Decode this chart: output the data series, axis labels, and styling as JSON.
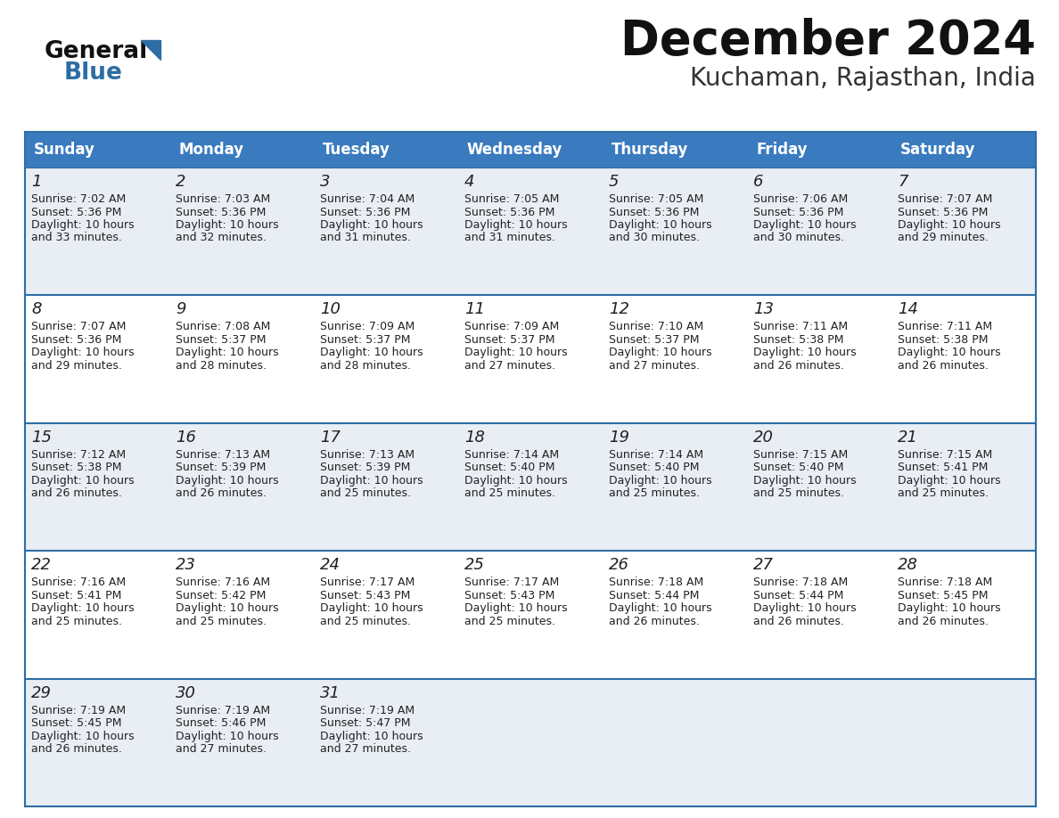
{
  "title": "December 2024",
  "subtitle": "Kuchaman, Rajasthan, India",
  "days_of_week": [
    "Sunday",
    "Monday",
    "Tuesday",
    "Wednesday",
    "Thursday",
    "Friday",
    "Saturday"
  ],
  "header_bg": "#3a7bbf",
  "header_text": "#ffffff",
  "cell_bg_light": "#e8eef4",
  "cell_bg_white": "#ffffff",
  "day_num_color": "#222222",
  "text_color": "#222222",
  "border_color": "#2e6da4",
  "title_color": "#111111",
  "subtitle_color": "#333333",
  "logo_general_color": "#111111",
  "logo_blue_color": "#2e6da4",
  "calendar": [
    [
      {
        "day": 1,
        "sunrise": "7:02 AM",
        "sunset": "5:36 PM",
        "daylight_h": "10 hours",
        "daylight_m": "33 minutes."
      },
      {
        "day": 2,
        "sunrise": "7:03 AM",
        "sunset": "5:36 PM",
        "daylight_h": "10 hours",
        "daylight_m": "32 minutes."
      },
      {
        "day": 3,
        "sunrise": "7:04 AM",
        "sunset": "5:36 PM",
        "daylight_h": "10 hours",
        "daylight_m": "31 minutes."
      },
      {
        "day": 4,
        "sunrise": "7:05 AM",
        "sunset": "5:36 PM",
        "daylight_h": "10 hours",
        "daylight_m": "31 minutes."
      },
      {
        "day": 5,
        "sunrise": "7:05 AM",
        "sunset": "5:36 PM",
        "daylight_h": "10 hours",
        "daylight_m": "30 minutes."
      },
      {
        "day": 6,
        "sunrise": "7:06 AM",
        "sunset": "5:36 PM",
        "daylight_h": "10 hours",
        "daylight_m": "30 minutes."
      },
      {
        "day": 7,
        "sunrise": "7:07 AM",
        "sunset": "5:36 PM",
        "daylight_h": "10 hours",
        "daylight_m": "29 minutes."
      }
    ],
    [
      {
        "day": 8,
        "sunrise": "7:07 AM",
        "sunset": "5:36 PM",
        "daylight_h": "10 hours",
        "daylight_m": "29 minutes."
      },
      {
        "day": 9,
        "sunrise": "7:08 AM",
        "sunset": "5:37 PM",
        "daylight_h": "10 hours",
        "daylight_m": "28 minutes."
      },
      {
        "day": 10,
        "sunrise": "7:09 AM",
        "sunset": "5:37 PM",
        "daylight_h": "10 hours",
        "daylight_m": "28 minutes."
      },
      {
        "day": 11,
        "sunrise": "7:09 AM",
        "sunset": "5:37 PM",
        "daylight_h": "10 hours",
        "daylight_m": "27 minutes."
      },
      {
        "day": 12,
        "sunrise": "7:10 AM",
        "sunset": "5:37 PM",
        "daylight_h": "10 hours",
        "daylight_m": "27 minutes."
      },
      {
        "day": 13,
        "sunrise": "7:11 AM",
        "sunset": "5:38 PM",
        "daylight_h": "10 hours",
        "daylight_m": "26 minutes."
      },
      {
        "day": 14,
        "sunrise": "7:11 AM",
        "sunset": "5:38 PM",
        "daylight_h": "10 hours",
        "daylight_m": "26 minutes."
      }
    ],
    [
      {
        "day": 15,
        "sunrise": "7:12 AM",
        "sunset": "5:38 PM",
        "daylight_h": "10 hours",
        "daylight_m": "26 minutes."
      },
      {
        "day": 16,
        "sunrise": "7:13 AM",
        "sunset": "5:39 PM",
        "daylight_h": "10 hours",
        "daylight_m": "26 minutes."
      },
      {
        "day": 17,
        "sunrise": "7:13 AM",
        "sunset": "5:39 PM",
        "daylight_h": "10 hours",
        "daylight_m": "25 minutes."
      },
      {
        "day": 18,
        "sunrise": "7:14 AM",
        "sunset": "5:40 PM",
        "daylight_h": "10 hours",
        "daylight_m": "25 minutes."
      },
      {
        "day": 19,
        "sunrise": "7:14 AM",
        "sunset": "5:40 PM",
        "daylight_h": "10 hours",
        "daylight_m": "25 minutes."
      },
      {
        "day": 20,
        "sunrise": "7:15 AM",
        "sunset": "5:40 PM",
        "daylight_h": "10 hours",
        "daylight_m": "25 minutes."
      },
      {
        "day": 21,
        "sunrise": "7:15 AM",
        "sunset": "5:41 PM",
        "daylight_h": "10 hours",
        "daylight_m": "25 minutes."
      }
    ],
    [
      {
        "day": 22,
        "sunrise": "7:16 AM",
        "sunset": "5:41 PM",
        "daylight_h": "10 hours",
        "daylight_m": "25 minutes."
      },
      {
        "day": 23,
        "sunrise": "7:16 AM",
        "sunset": "5:42 PM",
        "daylight_h": "10 hours",
        "daylight_m": "25 minutes."
      },
      {
        "day": 24,
        "sunrise": "7:17 AM",
        "sunset": "5:43 PM",
        "daylight_h": "10 hours",
        "daylight_m": "25 minutes."
      },
      {
        "day": 25,
        "sunrise": "7:17 AM",
        "sunset": "5:43 PM",
        "daylight_h": "10 hours",
        "daylight_m": "25 minutes."
      },
      {
        "day": 26,
        "sunrise": "7:18 AM",
        "sunset": "5:44 PM",
        "daylight_h": "10 hours",
        "daylight_m": "26 minutes."
      },
      {
        "day": 27,
        "sunrise": "7:18 AM",
        "sunset": "5:44 PM",
        "daylight_h": "10 hours",
        "daylight_m": "26 minutes."
      },
      {
        "day": 28,
        "sunrise": "7:18 AM",
        "sunset": "5:45 PM",
        "daylight_h": "10 hours",
        "daylight_m": "26 minutes."
      }
    ],
    [
      {
        "day": 29,
        "sunrise": "7:19 AM",
        "sunset": "5:45 PM",
        "daylight_h": "10 hours",
        "daylight_m": "26 minutes."
      },
      {
        "day": 30,
        "sunrise": "7:19 AM",
        "sunset": "5:46 PM",
        "daylight_h": "10 hours",
        "daylight_m": "27 minutes."
      },
      {
        "day": 31,
        "sunrise": "7:19 AM",
        "sunset": "5:47 PM",
        "daylight_h": "10 hours",
        "daylight_m": "27 minutes."
      },
      null,
      null,
      null,
      null
    ]
  ]
}
